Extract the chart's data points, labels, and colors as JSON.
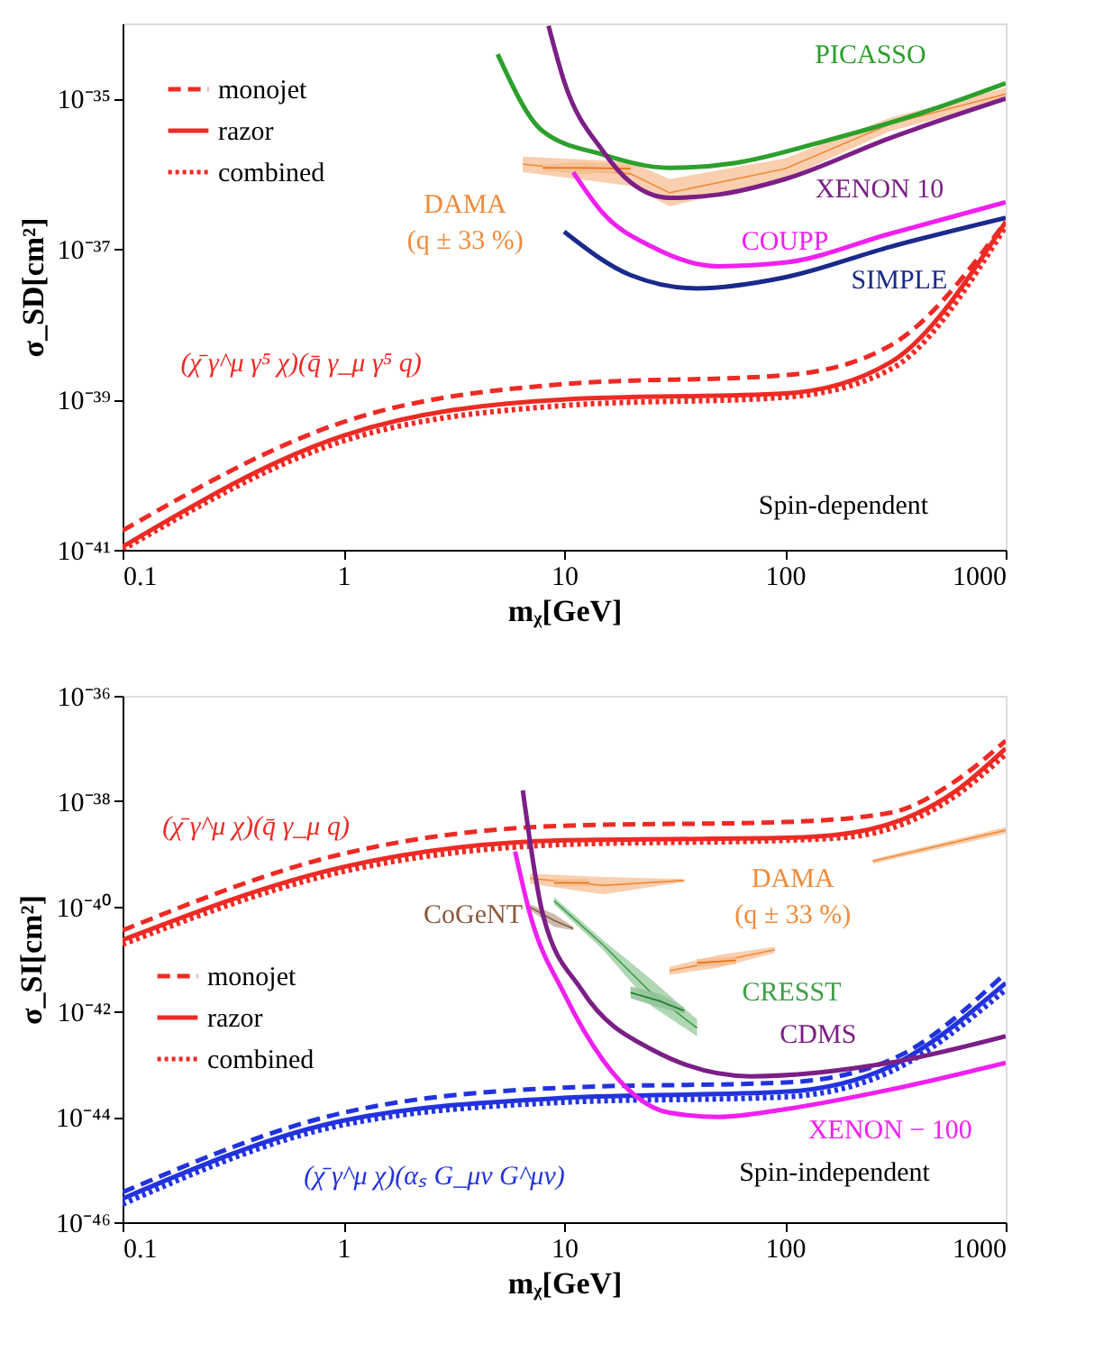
{
  "chart_data": [
    {
      "type": "line",
      "xlabel": "mᵪ[GeV]",
      "ylabel": "σ_SD[cm²]",
      "log": "xy",
      "grid": false,
      "legend": "top left",
      "xlim": [
        0.1,
        1000
      ],
      "xticks": [
        0.1,
        1,
        10,
        100,
        1000
      ],
      "ylim": [
        1e-41,
        1e-34
      ],
      "yticks": [
        {
          "value": 1e-41,
          "label": "10⁻⁴¹"
        },
        {
          "value": 1e-39,
          "label": "10⁻³⁹"
        },
        {
          "value": 1e-37,
          "label": "10⁻³⁷"
        },
        {
          "value": 1e-35,
          "label": "10⁻³⁵"
        }
      ],
      "series": [
        {
          "name": "monojet",
          "color": "#ee2a24",
          "line_style": "dashed",
          "x": [
            0.1,
            1,
            10,
            100,
            300,
            1000
          ],
          "values": [
            1.8e-41,
            5e-40,
            1.6e-39,
            2.1e-39,
            5.2e-39,
            2.3e-37
          ]
        },
        {
          "name": "razor",
          "color": "#ee2a24",
          "line_style": "solid",
          "x": [
            0.1,
            1,
            10,
            100,
            300,
            1000
          ],
          "values": [
            1.1e-41,
            3.3e-40,
            1e-39,
            1.2e-39,
            3.1e-39,
            2.3e-37
          ]
        },
        {
          "name": "combined",
          "color": "#ee2a24",
          "line_style": "dotted",
          "x": [
            0.1,
            1,
            10,
            100,
            300,
            1000
          ],
          "values": [
            1e-41,
            2.8e-40,
            8.3e-40,
            1.07e-39,
            2.5e-39,
            2e-37
          ]
        },
        {
          "name": "PICASSO",
          "color": "#2ca02c",
          "line_style": "solid",
          "x": [
            5,
            8,
            15,
            30,
            60,
            150,
            400,
            1000
          ],
          "values": [
            3.9e-35,
            3.7e-36,
            1.8e-36,
            1.2e-36,
            1.4e-36,
            2.7e-36,
            6.2e-36,
            1.6e-35
          ]
        },
        {
          "name": "XENON 10",
          "color": "#7b1f86",
          "line_style": "solid",
          "x": [
            8.5,
            10,
            15,
            20,
            30,
            50,
            100,
            300,
            1000
          ],
          "values": [
            9.3e-35,
            1.7e-35,
            2e-36,
            7.7e-37,
            4.8e-37,
            5.3e-37,
            8.5e-37,
            3e-36,
            1e-35
          ]
        },
        {
          "name": "COUPP",
          "color": "#f020f0",
          "line_style": "solid",
          "x": [
            11,
            15,
            25,
            50,
            100,
            300,
            1000
          ],
          "values": [
            1.05e-36,
            3e-37,
            1.07e-37,
            5.9e-38,
            6.6e-38,
            1.6e-37,
            4.2e-37
          ]
        },
        {
          "name": "SIMPLE",
          "color": "#1a2a8c",
          "line_style": "solid",
          "x": [
            10,
            20,
            40,
            100,
            300,
            1000
          ],
          "values": [
            1.7e-37,
            4.5e-38,
            3e-38,
            4.2e-38,
            1.07e-37,
            2.6e-37
          ]
        },
        {
          "name": "DAMA\n(q ± 33 %)",
          "color": "#f08a3a",
          "x": [
            6.5,
            20,
            30,
            100,
            300,
            1000
          ],
          "values": [
            1.34e-36,
            1e-36,
            5.6e-37,
            1.17e-36,
            4.6e-36,
            1.15e-35
          ],
          "upper": [
            1.7e-36,
            1.45e-36,
            8.5e-37,
            1.6e-36,
            5.6e-36,
            1.4e-35
          ],
          "lower": [
            1.05e-36,
            6.9e-37,
            3.7e-37,
            8.5e-37,
            3.7e-36,
            9.4e-36
          ]
        },
        {
          "color": "#e8700f",
          "x": [
            8,
            12,
            20
          ],
          "values": [
            1.2e-36,
            1.2e-36,
            1.17e-36
          ],
          "upper": [
            1.3e-36,
            1.45e-36,
            1.3e-36
          ],
          "lower": [
            1.1e-36,
            1e-36,
            1.05e-36
          ]
        }
      ],
      "annotations": [
        "(χ̄ γ^μ γ⁵ χ)(q̄ γ_μ γ⁵ q)",
        "Spin-dependent"
      ]
    },
    {
      "type": "line",
      "xlabel": "mᵪ[GeV]",
      "ylabel": "σ_SI[cm²]",
      "log": "xy",
      "grid": false,
      "legend": "left",
      "xlim": [
        0.1,
        1000
      ],
      "xticks": [
        0.1,
        1,
        10,
        100,
        1000
      ],
      "ylim": [
        1e-46,
        1e-36
      ],
      "yticks": [
        {
          "value": 1e-46,
          "label": "10⁻⁴⁶"
        },
        {
          "value": 1e-44,
          "label": "10⁻⁴⁴"
        },
        {
          "value": 1e-42,
          "label": "10⁻⁴²"
        },
        {
          "value": 1e-40,
          "label": "10⁻⁴⁰"
        },
        {
          "value": 1e-38,
          "label": "10⁻³⁸"
        },
        {
          "value": 1e-36,
          "label": "10⁻³⁶"
        }
      ],
      "series": [
        {
          "name": "monojet",
          "color": "#ee2a24",
          "line_style": "dashed",
          "x": [
            0.1,
            1,
            10,
            100,
            300,
            600,
            1000
          ],
          "values": [
            3.5e-41,
            1e-39,
            3.4e-39,
            4e-39,
            6e-39,
            2.5e-38,
            1.4e-37
          ]
        },
        {
          "name": "razor",
          "color": "#ee2a24",
          "line_style": "solid",
          "x": [
            0.1,
            1,
            10,
            100,
            200,
            600,
            1000
          ],
          "values": [
            2.3e-41,
            5.6e-40,
            1.8e-39,
            2e-39,
            2.5e-39,
            1.6e-38,
            1e-37
          ]
        },
        {
          "name": "combined",
          "color": "#ee2a24",
          "line_style": "dotted",
          "x": [
            0.1,
            1,
            10,
            100,
            200,
            600,
            1000
          ],
          "values": [
            1.9e-41,
            4.6e-40,
            1.5e-39,
            1.8e-39,
            2.1e-39,
            1.3e-38,
            7.8e-38
          ]
        },
        {
          "color": "#2233dd",
          "line_style": "dashed",
          "x": [
            0.1,
            1,
            10,
            100,
            300,
            1000
          ],
          "values": [
            3.7e-46,
            1.2e-44,
            3.6e-44,
            4.5e-44,
            1.2e-43,
            5.4e-42
          ]
        },
        {
          "color": "#2233dd",
          "line_style": "solid",
          "x": [
            0.1,
            1,
            10,
            100,
            300,
            1000
          ],
          "values": [
            2.8e-46,
            8.5e-45,
            2.3e-44,
            3e-44,
            9.1e-44,
            3.5e-42
          ]
        },
        {
          "color": "#2233dd",
          "line_style": "dotted",
          "x": [
            0.1,
            1,
            10,
            100,
            300,
            1000
          ],
          "values": [
            2.2e-46,
            7.1e-45,
            1.9e-44,
            2.4e-44,
            7.2e-44,
            2.6e-42
          ]
        },
        {
          "name": "CDMS",
          "color": "#7b1f86",
          "line_style": "solid",
          "x": [
            6.5,
            8,
            12,
            25,
            70,
            300,
            1000
          ],
          "values": [
            1.6e-38,
            7.2e-41,
            2.6e-42,
            1.9e-43,
            5.9e-44,
            1.07e-43,
            3.4e-43
          ]
        },
        {
          "name": "XENON − 100",
          "color": "#f020f0",
          "line_style": "solid",
          "x": [
            6,
            7,
            10,
            15,
            30,
            50,
            100,
            300,
            1000
          ],
          "values": [
            1.1e-39,
            7.2e-41,
            2.2e-42,
            1.2e-43,
            1.2e-44,
            1e-44,
            1.4e-44,
            3.3e-44,
            1.07e-43
          ]
        },
        {
          "color": "#f08a3a",
          "x": [
            7,
            15,
            35
          ],
          "values": [
            3.4e-40,
            2.5e-40,
            3.1e-40
          ],
          "upper": [
            4.2e-40,
            3.6e-40,
            3.3e-40
          ],
          "lower": [
            2.7e-40,
            1.7e-40,
            2.9e-40
          ]
        },
        {
          "color": "#e8700f",
          "x": [
            9,
            13
          ],
          "values": [
            2.8e-40,
            2.8e-40
          ],
          "upper": [
            3.3e-40,
            3.3e-40
          ],
          "lower": [
            2.4e-40,
            2.4e-40
          ]
        },
        {
          "name": "DAMA\n(q ± 33 %)",
          "color": "#f08a3a",
          "x": [
            30,
            50,
            90
          ],
          "values": [
            6e-42,
            9e-42,
            1.5e-41
          ],
          "upper": [
            7.1e-42,
            1.2e-41,
            1.7e-41
          ],
          "lower": [
            5e-42,
            6.8e-42,
            1.3e-41
          ]
        },
        {
          "color": "#e8700f",
          "x": [
            40,
            60
          ],
          "values": [
            8.4e-42,
            9.4e-42
          ],
          "upper": [
            1e-41,
            1.1e-41
          ],
          "lower": [
            7e-42,
            8e-42
          ]
        },
        {
          "color": "#f08a3a",
          "x": [
            250,
            1000
          ],
          "values": [
            7.2e-40,
            2.8e-39
          ],
          "upper": [
            7.9e-40,
            3.2e-39
          ],
          "lower": [
            6.5e-40,
            2.4e-39
          ]
        },
        {
          "name": "CoGeNT",
          "color": "#8a5a3c",
          "x": [
            7,
            9,
            11
          ],
          "values": [
            9.7e-41,
            5.4e-41,
            3.8e-41
          ],
          "upper": [
            1.1e-40,
            7.2e-41,
            4.1e-41
          ],
          "lower": [
            8.5e-41,
            4.1e-41,
            3.5e-41
          ]
        },
        {
          "name": "CRESST",
          "color": "#3f9f4a",
          "x": [
            9,
            15,
            25,
            40
          ],
          "values": [
            1.28e-40,
            1.86e-41,
            2.2e-42,
            4.9e-43
          ],
          "upper": [
            1.5e-40,
            2.3e-41,
            4e-42,
            7.1e-43
          ],
          "lower": [
            1.1e-40,
            1.5e-41,
            1.26e-42,
            3.4e-43
          ]
        },
        {
          "color": "#137a20",
          "x": [
            20,
            27,
            35
          ],
          "values": [
            2.3e-42,
            1.6e-42,
            1.04e-42
          ],
          "upper": [
            3e-42,
            2.2e-42,
            1.2e-42
          ],
          "lower": [
            1.8e-42,
            1.2e-42,
            9e-43
          ]
        }
      ],
      "annotations": [
        "(χ̄ γ^μ χ)(q̄ γ_μ q)",
        "(χ̄ γ^μ χ)(αₛ G_μν G^μν)",
        "Spin-independent"
      ]
    }
  ]
}
